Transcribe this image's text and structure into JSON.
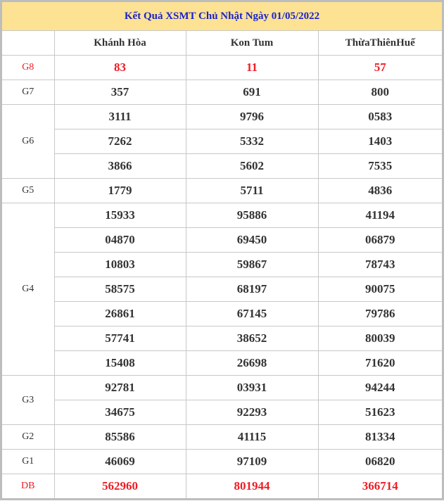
{
  "title": "Kết Quả XSMT Chủ Nhật Ngày 01/05/2022",
  "provinces": [
    "Khánh Hòa",
    "Kon Tum",
    "ThừaThiênHuế"
  ],
  "colors": {
    "title_bg": "#fde293",
    "title_text": "#1a23c9",
    "highlight": "#ee1c25"
  },
  "prizes": [
    {
      "label": "G8",
      "highlight": true,
      "rows": [
        [
          "83",
          "11",
          "57"
        ]
      ]
    },
    {
      "label": "G7",
      "rows": [
        [
          "357",
          "691",
          "800"
        ]
      ]
    },
    {
      "label": "G6",
      "rows": [
        [
          "3111",
          "9796",
          "0583"
        ],
        [
          "7262",
          "5332",
          "1403"
        ],
        [
          "3866",
          "5602",
          "7535"
        ]
      ]
    },
    {
      "label": "G5",
      "rows": [
        [
          "1779",
          "5711",
          "4836"
        ]
      ]
    },
    {
      "label": "G4",
      "rows": [
        [
          "15933",
          "95886",
          "41194"
        ],
        [
          "04870",
          "69450",
          "06879"
        ],
        [
          "10803",
          "59867",
          "78743"
        ],
        [
          "58575",
          "68197",
          "90075"
        ],
        [
          "26861",
          "67145",
          "79786"
        ],
        [
          "57741",
          "38652",
          "80039"
        ],
        [
          "15408",
          "26698",
          "71620"
        ]
      ]
    },
    {
      "label": "G3",
      "rows": [
        [
          "92781",
          "03931",
          "94244"
        ],
        [
          "34675",
          "92293",
          "51623"
        ]
      ]
    },
    {
      "label": "G2",
      "rows": [
        [
          "85586",
          "41115",
          "81334"
        ]
      ]
    },
    {
      "label": "G1",
      "rows": [
        [
          "46069",
          "97109",
          "06820"
        ]
      ]
    },
    {
      "label": "DB",
      "highlight": true,
      "rows": [
        [
          "562960",
          "801944",
          "366714"
        ]
      ]
    }
  ]
}
